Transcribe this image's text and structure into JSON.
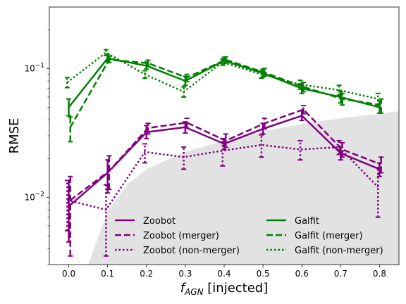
{
  "chart_data": {
    "type": "line",
    "title": "",
    "xlabel_main": "f",
    "xlabel_sub": "AGN",
    "xlabel_rest": " [injected]",
    "ylabel": "RMSE",
    "xlim": [
      -0.05,
      0.85
    ],
    "ylim": [
      0.003,
      0.3
    ],
    "yscale": "log",
    "grid": false,
    "legend_position": "lower-right",
    "x": [
      0.0,
      0.1,
      0.2,
      0.3,
      0.4,
      0.5,
      0.6,
      0.7,
      0.8
    ],
    "x_ticks": [
      {
        "value": 0.0,
        "label": "0.0"
      },
      {
        "value": 0.1,
        "label": "0.1"
      },
      {
        "value": 0.2,
        "label": "0.2"
      },
      {
        "value": 0.3,
        "label": "0.3"
      },
      {
        "value": 0.4,
        "label": "0.4"
      },
      {
        "value": 0.5,
        "label": "0.5"
      },
      {
        "value": 0.6,
        "label": "0.6"
      },
      {
        "value": 0.7,
        "label": "0.7"
      },
      {
        "value": 0.8,
        "label": "0.8"
      }
    ],
    "y_ticks": [
      {
        "value": 0.01,
        "base": "10",
        "exp": "−2"
      },
      {
        "value": 0.1,
        "base": "10",
        "exp": "−1"
      }
    ],
    "shaded_region": {
      "color": "#e2e2e2",
      "x": [
        0.05,
        0.1,
        0.15,
        0.2,
        0.3,
        0.4,
        0.5,
        0.6,
        0.7,
        0.8,
        0.85
      ],
      "y": [
        0.003,
        0.0078,
        0.0125,
        0.0165,
        0.0225,
        0.0275,
        0.0325,
        0.037,
        0.041,
        0.0445,
        0.0465
      ]
    },
    "series": [
      {
        "name": "Zoobot",
        "color": "#800080",
        "style": "solid",
        "offset": 0.0,
        "values": [
          0.0085,
          0.0155,
          0.032,
          0.035,
          0.026,
          0.034,
          0.043,
          0.022,
          0.0165
        ],
        "err_low": [
          0.0045,
          0.0108,
          0.0285,
          0.0315,
          0.0235,
          0.031,
          0.0395,
          0.0195,
          0.0145
        ],
        "err_high": [
          0.0135,
          0.0195,
          0.036,
          0.0385,
          0.0285,
          0.0375,
          0.047,
          0.0245,
          0.0185
        ]
      },
      {
        "name": "Zoobot (merger)",
        "color": "#800080",
        "style": "dashed",
        "offset": 0.004,
        "values": [
          0.0095,
          0.016,
          0.0345,
          0.038,
          0.0275,
          0.0375,
          0.048,
          0.0235,
          0.018
        ],
        "err_low": [
          0.0035,
          0.0115,
          0.031,
          0.0345,
          0.0245,
          0.034,
          0.0445,
          0.0205,
          0.0155
        ],
        "err_high": [
          0.0145,
          0.021,
          0.0375,
          0.041,
          0.031,
          0.041,
          0.0515,
          0.0265,
          0.0205
        ]
      },
      {
        "name": "Zoobot (non-merger)",
        "color": "#800080",
        "style": "dotted",
        "offset": -0.004,
        "values": [
          0.0095,
          0.008,
          0.0225,
          0.0205,
          0.023,
          0.0255,
          0.0235,
          0.0245,
          0.012
        ],
        "err_low": [
          0.0055,
          0.0035,
          0.0185,
          0.0165,
          0.0175,
          0.0205,
          0.0195,
          0.0215,
          0.007
        ],
        "err_high": [
          0.0135,
          0.0125,
          0.026,
          0.0245,
          0.0285,
          0.0305,
          0.0275,
          0.0275,
          0.017
        ]
      },
      {
        "name": "Galfit",
        "color": "#008000",
        "style": "solid",
        "offset": 0.0,
        "values": [
          0.05,
          0.12,
          0.105,
          0.08,
          0.115,
          0.092,
          0.07,
          0.06,
          0.05
        ],
        "err_low": [
          0.043,
          0.113,
          0.099,
          0.074,
          0.109,
          0.086,
          0.064,
          0.054,
          0.045
        ],
        "err_high": [
          0.058,
          0.128,
          0.112,
          0.087,
          0.122,
          0.099,
          0.076,
          0.066,
          0.056
        ]
      },
      {
        "name": "Galfit (merger)",
        "color": "#008000",
        "style": "dashed",
        "offset": 0.004,
        "values": [
          0.035,
          0.117,
          0.11,
          0.085,
          0.117,
          0.093,
          0.072,
          0.058,
          0.052
        ],
        "err_low": [
          0.027,
          0.111,
          0.104,
          0.079,
          0.111,
          0.087,
          0.066,
          0.052,
          0.045
        ],
        "err_high": [
          0.042,
          0.124,
          0.116,
          0.09,
          0.123,
          0.1,
          0.078,
          0.064,
          0.058
        ]
      },
      {
        "name": "Galfit (non-merger)",
        "color": "#008000",
        "style": "dotted",
        "offset": -0.004,
        "values": [
          0.078,
          0.133,
          0.09,
          0.066,
          0.112,
          0.09,
          0.075,
          0.068,
          0.058
        ],
        "err_low": [
          0.071,
          0.126,
          0.084,
          0.06,
          0.106,
          0.084,
          0.069,
          0.062,
          0.052
        ],
        "err_high": [
          0.085,
          0.14,
          0.096,
          0.072,
          0.118,
          0.096,
          0.081,
          0.074,
          0.064
        ]
      }
    ]
  }
}
